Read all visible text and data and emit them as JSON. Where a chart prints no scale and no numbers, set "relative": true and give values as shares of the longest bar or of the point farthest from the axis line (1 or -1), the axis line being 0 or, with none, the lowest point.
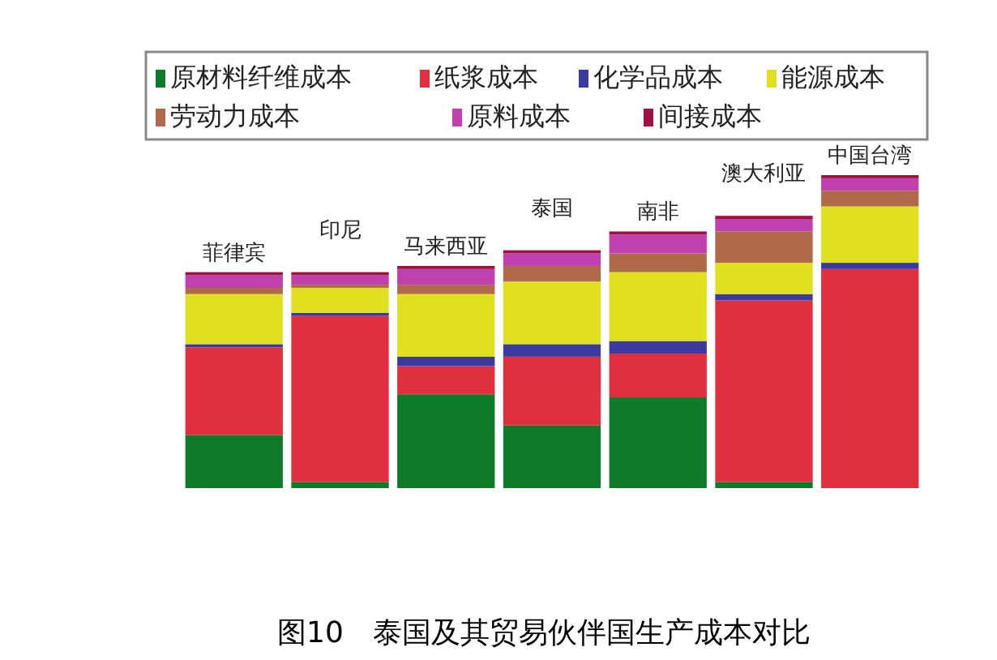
{
  "chart_data": {
    "type": "bar",
    "stacked": true,
    "relative": true,
    "title": "图10　泰国及其贸易伙伴国生产成本对比",
    "legend": "top",
    "categories": [
      "菲律宾",
      "印尼",
      "马来西亚",
      "泰国",
      "南非",
      "澳大利亚",
      "中国台湾"
    ],
    "series": [
      {
        "name": "原材料纤维成本",
        "color": "#0f7a2a",
        "values": [
          0.17,
          0.02,
          0.3,
          0.2,
          0.29,
          0.02,
          0
        ]
      },
      {
        "name": "纸浆成本",
        "color": "#e03040",
        "values": [
          0.28,
          0.53,
          0.09,
          0.22,
          0.14,
          0.58,
          0.7
        ]
      },
      {
        "name": "化学品成本",
        "color": "#3a3aa0",
        "values": [
          0.01,
          0.01,
          0.03,
          0.04,
          0.04,
          0.02,
          0.02
        ]
      },
      {
        "name": "能源成本",
        "color": "#e0e020",
        "values": [
          0.16,
          0.08,
          0.2,
          0.2,
          0.22,
          0.1,
          0.18
        ]
      },
      {
        "name": "劳动力成本",
        "color": "#b06a4a",
        "values": [
          0.02,
          0.01,
          0.03,
          0.05,
          0.06,
          0.1,
          0.05
        ]
      },
      {
        "name": "原料成本",
        "color": "#c040b0",
        "values": [
          0.04,
          0.03,
          0.05,
          0.04,
          0.06,
          0.04,
          0.04
        ]
      },
      {
        "name": "间接成本",
        "color": "#a01040",
        "values": [
          0.01,
          0.01,
          0.01,
          0.01,
          0.01,
          0.01,
          0.01
        ]
      }
    ]
  }
}
